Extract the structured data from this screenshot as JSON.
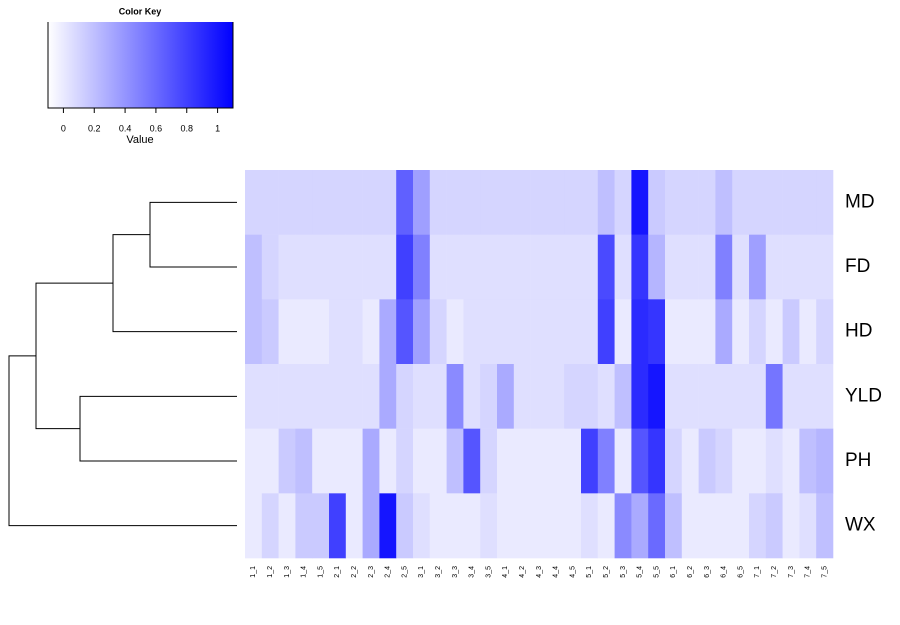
{
  "chart_data": {
    "type": "heatmap",
    "rows": [
      "MD",
      "FD",
      "HD",
      "YLD",
      "PH",
      "WX"
    ],
    "columns": [
      "1_1",
      "1_2",
      "1_3",
      "1_4",
      "1_5",
      "2_1",
      "2_2",
      "2_3",
      "2_4",
      "2_5",
      "3_1",
      "3_2",
      "3_3",
      "3_4",
      "3_5",
      "4_1",
      "4_2",
      "4_3",
      "4_4",
      "4_5",
      "5_1",
      "5_2",
      "5_3",
      "5_4",
      "5_5",
      "6_1",
      "6_2",
      "6_3",
      "6_4",
      "6_5",
      "7_1",
      "7_2",
      "7_3",
      "7_4",
      "7_5"
    ],
    "values": [
      [
        0.1,
        0.1,
        0.1,
        0.1,
        0.1,
        0.1,
        0.1,
        0.1,
        0.1,
        0.65,
        0.35,
        0.1,
        0.1,
        0.1,
        0.1,
        0.1,
        0.1,
        0.1,
        0.1,
        0.1,
        0.1,
        0.2,
        0.1,
        1.0,
        0.15,
        0.1,
        0.1,
        0.1,
        0.2,
        0.1,
        0.1,
        0.1,
        0.1,
        0.1,
        0.1
      ],
      [
        0.2,
        0.1,
        0.05,
        0.05,
        0.05,
        0.05,
        0.05,
        0.05,
        0.05,
        0.8,
        0.5,
        0.05,
        0.05,
        0.05,
        0.05,
        0.05,
        0.05,
        0.05,
        0.05,
        0.05,
        0.05,
        0.75,
        0.05,
        0.85,
        0.25,
        0.05,
        0.05,
        0.05,
        0.5,
        0.05,
        0.35,
        0.05,
        0.05,
        0.05,
        0.05
      ],
      [
        0.2,
        0.15,
        0.0,
        0.0,
        0.0,
        0.05,
        0.05,
        0.0,
        0.3,
        0.7,
        0.35,
        0.1,
        0.0,
        0.05,
        0.05,
        0.05,
        0.05,
        0.05,
        0.05,
        0.05,
        0.05,
        0.8,
        0.0,
        0.9,
        0.85,
        0.0,
        0.0,
        0.0,
        0.3,
        0.0,
        0.1,
        0.0,
        0.15,
        0.0,
        0.1
      ],
      [
        0.05,
        0.05,
        0.05,
        0.05,
        0.05,
        0.05,
        0.05,
        0.05,
        0.3,
        0.1,
        0.05,
        0.05,
        0.45,
        0.05,
        0.1,
        0.3,
        0.05,
        0.05,
        0.05,
        0.1,
        0.1,
        0.05,
        0.2,
        0.9,
        1.0,
        0.05,
        0.05,
        0.05,
        0.05,
        0.05,
        0.05,
        0.55,
        0.05,
        0.05,
        0.05
      ],
      [
        0.0,
        0.0,
        0.15,
        0.2,
        0.0,
        0.0,
        0.0,
        0.3,
        0.0,
        0.1,
        0.0,
        0.0,
        0.2,
        0.7,
        0.1,
        0.0,
        0.0,
        0.0,
        0.0,
        0.0,
        0.8,
        0.5,
        0.0,
        0.7,
        0.85,
        0.1,
        0.0,
        0.15,
        0.1,
        0.0,
        0.0,
        0.05,
        0.0,
        0.2,
        0.25
      ],
      [
        0.0,
        0.1,
        0.0,
        0.15,
        0.15,
        0.8,
        0.0,
        0.3,
        1.0,
        0.15,
        0.05,
        0.0,
        0.0,
        0.0,
        0.05,
        0.0,
        0.0,
        0.0,
        0.0,
        0.0,
        0.05,
        0.0,
        0.45,
        0.3,
        0.6,
        0.2,
        0.0,
        0.0,
        0.0,
        0.0,
        0.1,
        0.15,
        0.0,
        0.05,
        0.2
      ]
    ],
    "low_color": "#ffffff",
    "high_color": "#0000ff",
    "color_key": {
      "title": "Color Key",
      "xlabel": "Value",
      "xlim": [
        -0.1,
        1.1
      ],
      "xticks": [
        0,
        0.2,
        0.4,
        0.6,
        0.8,
        1
      ]
    }
  }
}
